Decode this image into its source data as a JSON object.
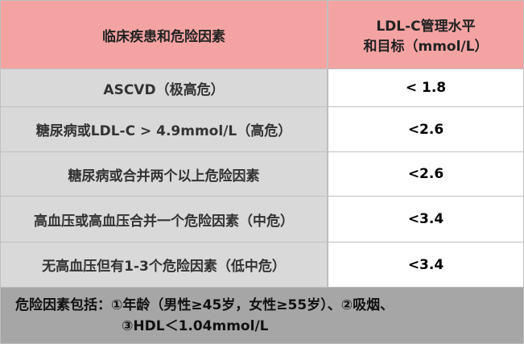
{
  "header": {
    "columns": [
      [
        "临床疾患和危险因素"
      ],
      [
        "LDL-C管理水平",
        "和目标（mmol/L）"
      ]
    ]
  },
  "table": {
    "rows": [
      [
        "ASCVD（极高危）",
        "< 1.8"
      ],
      [
        "糖尿病或LDL-C > 4.9mmol/L（高危）",
        "<2.6"
      ],
      [
        "糖尿病或合并两个以上危险因素",
        "<2.6"
      ],
      [
        "高血压或高血压合并一个危险因素（中危）",
        "<3.4"
      ],
      [
        "无高血压但有1-3个危险因素（低中危）",
        "<3.4"
      ]
    ]
  },
  "footer": {
    "lines": [
      "危险因素包括：①年龄（男性≥45岁，女性≥55岁）、②吸烟、",
      "③HDL＜1.04mmol/L"
    ]
  }
}
